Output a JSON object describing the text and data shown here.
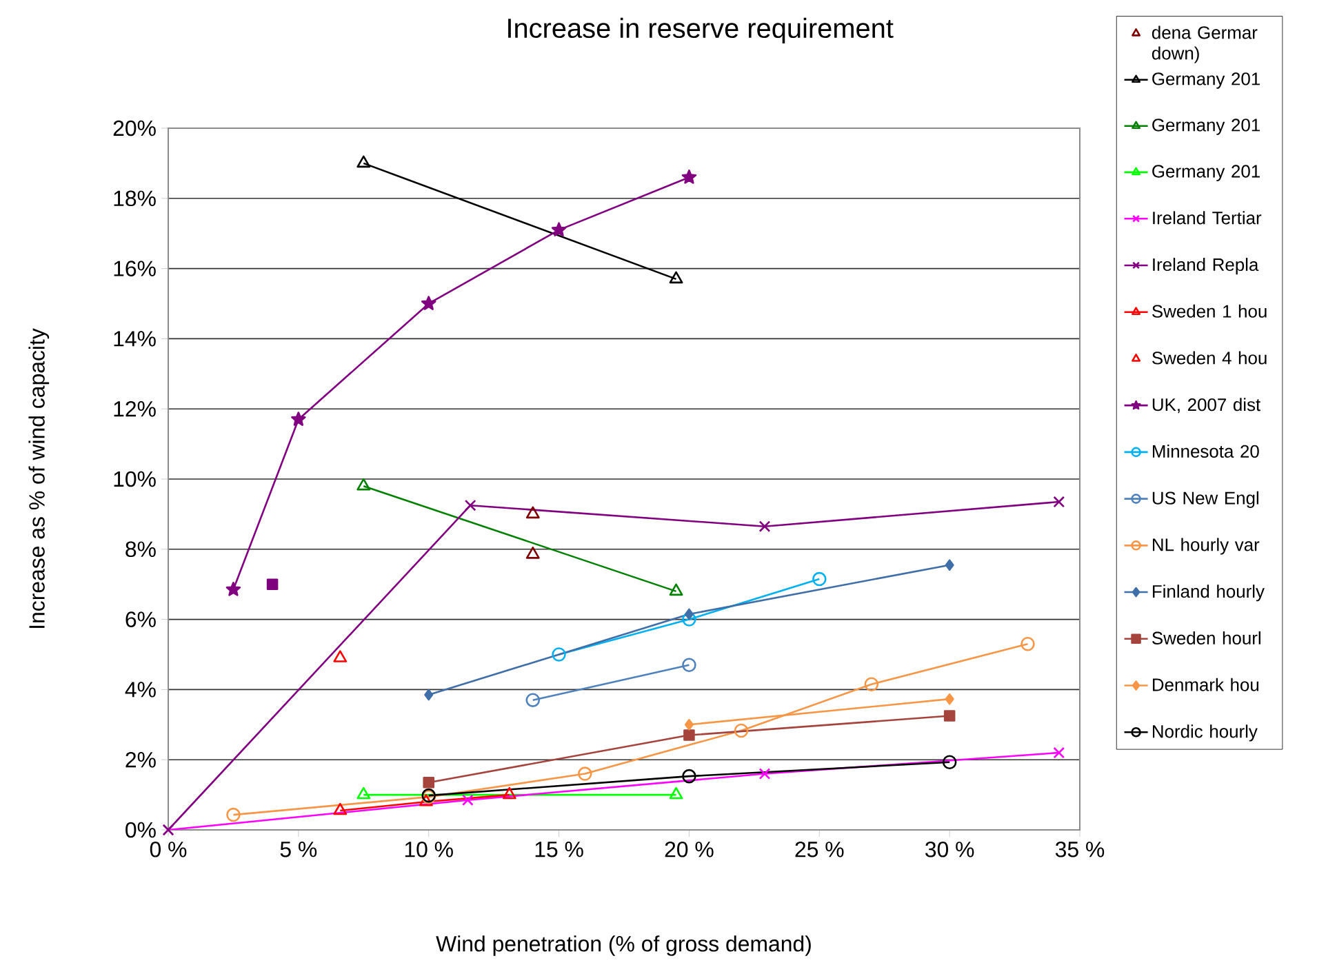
{
  "chart_data": {
    "type": "line",
    "title": "Increase in reserve requirement",
    "xlabel": "Wind penetration (% of gross demand)",
    "ylabel": "Increase as % of wind capacity",
    "xlim": [
      0,
      35
    ],
    "ylim": [
      0,
      20
    ],
    "xticks": [
      {
        "value": 0,
        "label": "0 %"
      },
      {
        "value": 5,
        "label": "5 %"
      },
      {
        "value": 10,
        "label": "10 %"
      },
      {
        "value": 15,
        "label": "15 %"
      },
      {
        "value": 20,
        "label": "20 %"
      },
      {
        "value": 25,
        "label": "25 %"
      },
      {
        "value": 30,
        "label": "30 %"
      },
      {
        "value": 35,
        "label": "35 %"
      }
    ],
    "yticks": [
      {
        "value": 0,
        "label": "0%"
      },
      {
        "value": 2,
        "label": "2%"
      },
      {
        "value": 4,
        "label": "4%"
      },
      {
        "value": 6,
        "label": "6%"
      },
      {
        "value": 8,
        "label": "8%"
      },
      {
        "value": 10,
        "label": "10%"
      },
      {
        "value": 12,
        "label": "12%"
      },
      {
        "value": 14,
        "label": "14%"
      },
      {
        "value": 16,
        "label": "16%"
      },
      {
        "value": 18,
        "label": "18%"
      },
      {
        "value": 20,
        "label": "20%"
      }
    ],
    "grid": "y",
    "legend": "right",
    "series": [
      {
        "name": "dena Germar down)",
        "type": "scatter",
        "marker": "triangle",
        "color": "#7f0000",
        "x": [
          14,
          14
        ],
        "values": [
          9.0,
          7.85
        ]
      },
      {
        "name": "Germany 201",
        "type": "line",
        "marker": "triangle",
        "color": "#000000",
        "x": [
          7.5,
          19.5
        ],
        "values": [
          19.0,
          15.7
        ]
      },
      {
        "name": "Germany 201",
        "type": "line",
        "marker": "triangle",
        "color": "#008000",
        "x": [
          7.5,
          19.5
        ],
        "values": [
          9.8,
          6.8
        ]
      },
      {
        "name": "Germany 201",
        "type": "line",
        "marker": "triangle",
        "color": "#00ff00",
        "x": [
          7.5,
          19.5
        ],
        "values": [
          1.0,
          1.0
        ]
      },
      {
        "name": "Ireland Tertiar",
        "type": "line",
        "marker": "cross",
        "color": "#ff00ff",
        "x": [
          0,
          11.5,
          22.9,
          34.2
        ],
        "values": [
          0,
          0.85,
          1.6,
          2.2
        ]
      },
      {
        "name": "Ireland Repla",
        "type": "line",
        "marker": "cross",
        "color": "#800080",
        "x": [
          0,
          11.6,
          22.9,
          34.2
        ],
        "values": [
          0,
          9.25,
          8.65,
          9.35
        ]
      },
      {
        "name": "Sweden 1 hou",
        "type": "line",
        "marker": "triangle",
        "color": "#ff0000",
        "x": [
          6.6,
          9.9,
          13.1
        ],
        "values": [
          0.55,
          0.8,
          1.0
        ]
      },
      {
        "name": "Sweden 4 hou",
        "type": "scatter",
        "marker": "triangle",
        "color": "#ff0000",
        "x": [
          6.6
        ],
        "values": [
          4.9
        ]
      },
      {
        "name": "UK, 2007 dist",
        "type": "line",
        "marker": "star",
        "color": "#800080",
        "x": [
          2.5,
          5,
          10,
          15,
          20
        ],
        "values": [
          6.85,
          11.7,
          15.0,
          17.1,
          18.6
        ]
      },
      {
        "type": "scatter",
        "marker": "square",
        "color": "#7f007f",
        "x": [
          4
        ],
        "values": [
          7.0
        ]
      },
      {
        "name": "Minnesota 20",
        "type": "line",
        "marker": "circle",
        "color": "#00b0f0",
        "x": [
          15,
          20,
          25
        ],
        "values": [
          5.0,
          6.0,
          7.15
        ]
      },
      {
        "name": "US New Engl",
        "type": "line",
        "marker": "circle",
        "color": "#4f81bd",
        "x": [
          14,
          20
        ],
        "values": [
          3.7,
          4.7
        ]
      },
      {
        "name": "NL hourly var",
        "type": "line",
        "marker": "circle",
        "color": "#f79646",
        "x": [
          2.5,
          10,
          16,
          22,
          27,
          33
        ],
        "values": [
          0.43,
          0.94,
          1.6,
          2.83,
          4.15,
          5.3
        ]
      },
      {
        "name": "Finland hourly",
        "type": "line",
        "marker": "diamond",
        "color": "#3f6ea8",
        "x": [
          10,
          20,
          30
        ],
        "values": [
          3.85,
          6.15,
          7.55
        ]
      },
      {
        "name": "Sweden hourl",
        "type": "line",
        "marker": "square",
        "color": "#a5433d",
        "x": [
          10,
          20,
          30
        ],
        "values": [
          1.35,
          2.7,
          3.25
        ]
      },
      {
        "name": "Denmark hou",
        "type": "line",
        "marker": "diamond",
        "color": "#f79646",
        "x": [
          20,
          30
        ],
        "values": [
          3.0,
          3.73
        ]
      },
      {
        "name": "Nordic hourly",
        "type": "line",
        "marker": "circle",
        "color": "#000000",
        "x": [
          10,
          20,
          30
        ],
        "values": [
          0.98,
          1.53,
          1.93
        ]
      }
    ]
  }
}
